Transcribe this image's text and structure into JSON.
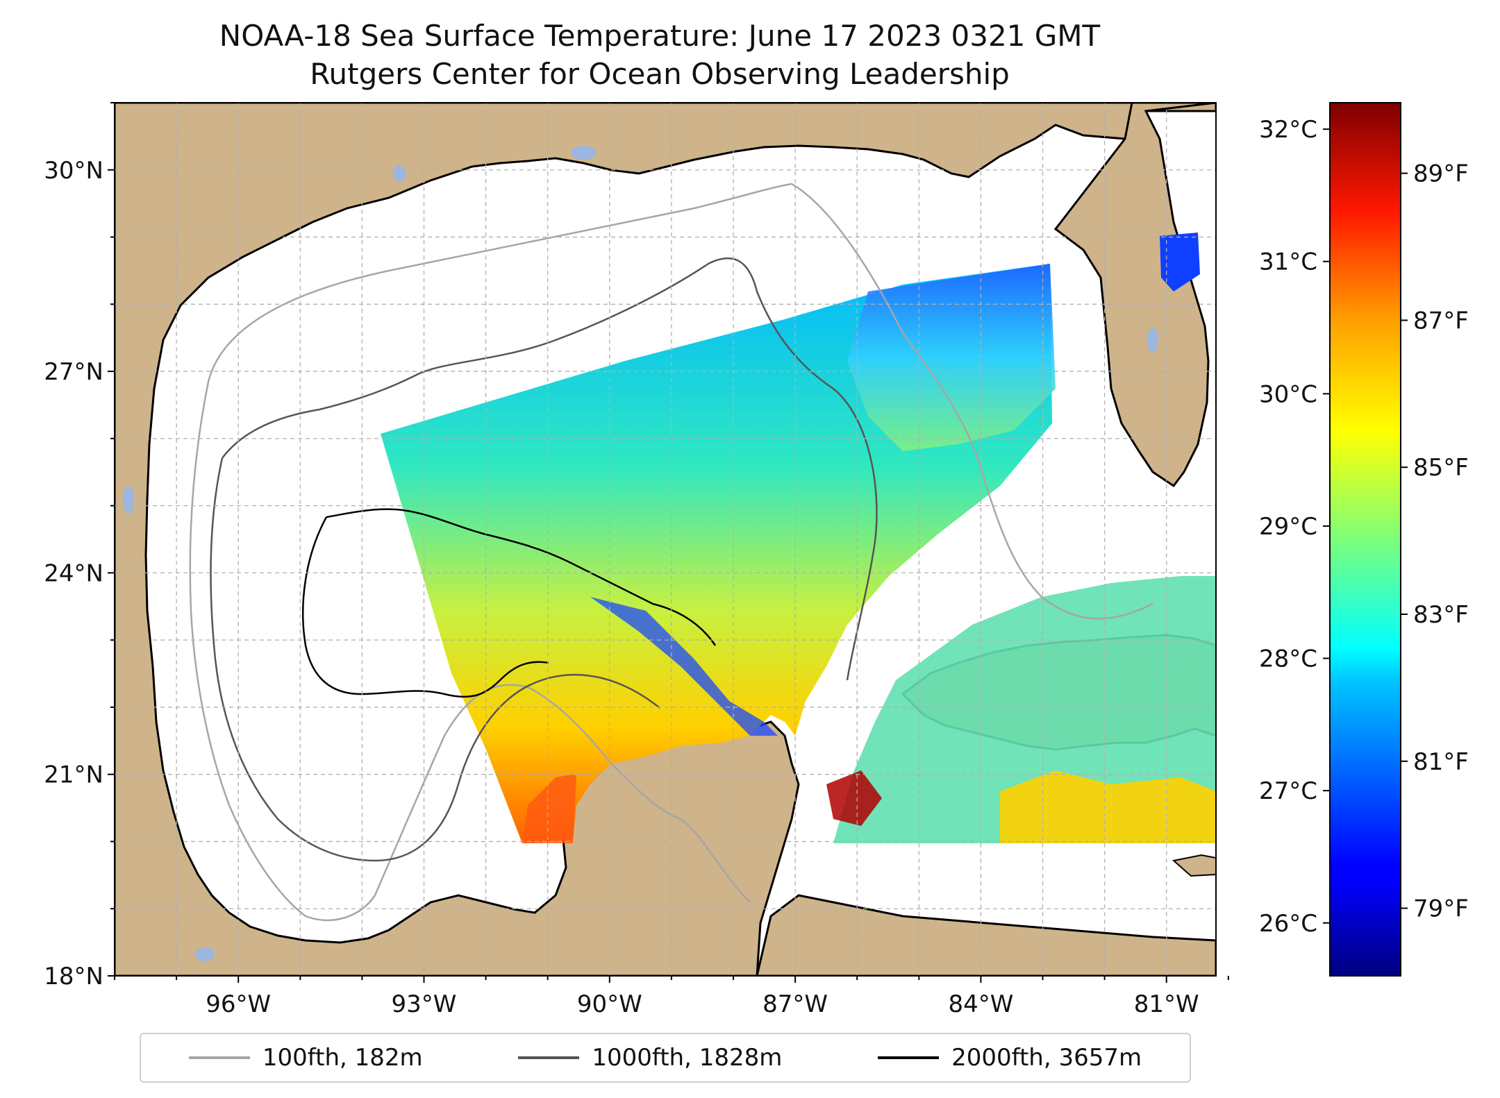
{
  "title": "NOAA-18 Sea Surface Temperature: June 17 2023 0321 GMT",
  "subtitle": "Rutgers Center for Ocean Observing Leadership",
  "colors": {
    "land": "#cfb38a",
    "water": "#ffffff",
    "lakes": "#9bb6df",
    "grid": "#b0b0b0",
    "contour_100": "#a6a6a6",
    "contour_1000": "#555555",
    "contour_2000": "#000000"
  },
  "map": {
    "lon_range": [
      -98,
      -80.2
    ],
    "lat_range": [
      18,
      31
    ],
    "lat_ticks": [
      {
        "value": 30,
        "label": "30°N"
      },
      {
        "value": 27,
        "label": "27°N"
      },
      {
        "value": 24,
        "label": "24°N"
      },
      {
        "value": 21,
        "label": "21°N"
      },
      {
        "value": 18,
        "label": "18°N"
      }
    ],
    "lon_ticks": [
      {
        "value": -96,
        "label": "96°W"
      },
      {
        "value": -93,
        "label": "93°W"
      },
      {
        "value": -90,
        "label": "90°W"
      },
      {
        "value": -87,
        "label": "87°W"
      },
      {
        "value": -84,
        "label": "84°W"
      },
      {
        "value": -81,
        "label": "81°W"
      }
    ],
    "gridlines": true
  },
  "colorbar": {
    "colormap": "jet",
    "range_c": [
      25.6,
      32.2
    ],
    "celsius_ticks": [
      {
        "value": 32,
        "label": "32°C"
      },
      {
        "value": 31,
        "label": "31°C"
      },
      {
        "value": 30,
        "label": "30°C"
      },
      {
        "value": 29,
        "label": "29°C"
      },
      {
        "value": 28,
        "label": "28°C"
      },
      {
        "value": 27,
        "label": "27°C"
      },
      {
        "value": 26,
        "label": "26°C"
      }
    ],
    "fahrenheit_ticks": [
      {
        "value": 89,
        "label": "89°F"
      },
      {
        "value": 87,
        "label": "87°F"
      },
      {
        "value": 85,
        "label": "85°F"
      },
      {
        "value": 83,
        "label": "83°F"
      },
      {
        "value": 81,
        "label": "81°F"
      },
      {
        "value": 79,
        "label": "79°F"
      }
    ]
  },
  "legend": {
    "entries": [
      {
        "label": "100fth, 182m",
        "color": "#a6a6a6"
      },
      {
        "label": "1000fth, 1828m",
        "color": "#555555"
      },
      {
        "label": "2000fth, 3657m",
        "color": "#000000"
      }
    ]
  }
}
